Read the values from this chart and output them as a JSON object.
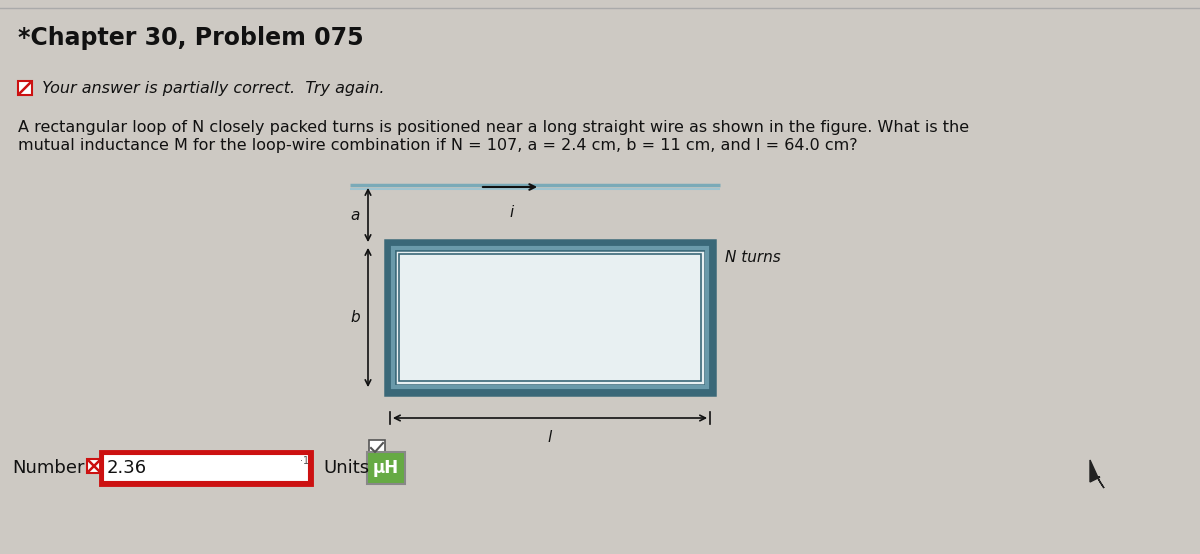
{
  "title": "*Chapter 30, Problem 075",
  "title_fontsize": 17,
  "title_fontweight": "bold",
  "bg_color": "#cdc9c3",
  "text_color": "#111111",
  "partial_icon_color": "#cc0000",
  "partial_text": " Your answer is partially correct.  Try again.",
  "partial_fontsize": 11.5,
  "problem_line1": "A rectangular loop of N closely packed turns is positioned near a long straight wire as shown in the figure. What is the",
  "problem_line2": "mutual inductance M for the loop-wire combination if N = 107, a = 2.4 cm, b = 11 cm, and l = 64.0 cm?",
  "problem_fontsize": 11.5,
  "wire_color": "#7aaab8",
  "wire_color2": "#a0c4d0",
  "rect_border_outer": "#3a6878",
  "rect_border_mid": "#6a9aaa",
  "rect_fill": "#e8f0f2",
  "dim_color": "#111111",
  "N_turns_text": "N turns",
  "number_value": "2.36",
  "units_value": "μH",
  "red_color": "#cc1111",
  "green_color": "#66aa44",
  "cursor_color": "#222222"
}
